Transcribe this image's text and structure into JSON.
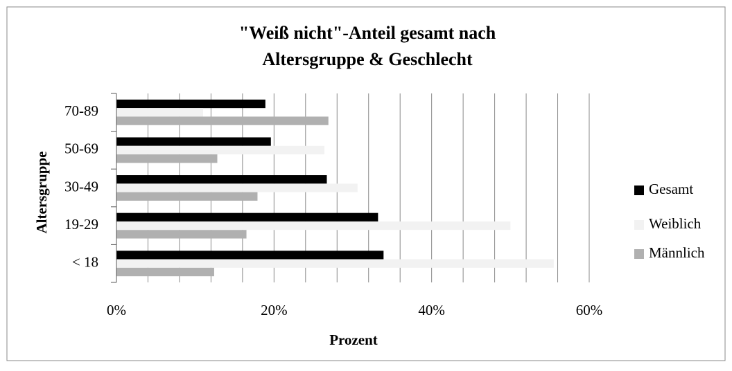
{
  "chart_data": {
    "type": "bar",
    "orientation": "horizontal",
    "title": [
      "\"Weiß nicht\"-Anteil gesamt nach",
      "Altersgruppe & Geschlecht"
    ],
    "x_label": "Prozent",
    "y_label": "Altersgruppe",
    "categories": [
      "70-89",
      "50-69",
      "30-49",
      "19-29",
      "< 18"
    ],
    "series": [
      {
        "name": "Gesamt",
        "color": "#000000",
        "values": [
          18.9,
          19.6,
          26.7,
          33.2,
          33.9
        ]
      },
      {
        "name": "Weiblich",
        "color": "#f2f2f2",
        "values": [
          11.0,
          26.4,
          30.6,
          50.0,
          55.5
        ]
      },
      {
        "name": "Männlich",
        "color": "#b0b0b0",
        "values": [
          26.9,
          12.8,
          17.9,
          16.5,
          12.4
        ]
      }
    ],
    "xlim": [
      0,
      60
    ],
    "xticks": [
      {
        "value": 0,
        "label": "0%"
      },
      {
        "value": 20,
        "label": "20%"
      },
      {
        "value": 40,
        "label": "40%"
      },
      {
        "value": 60,
        "label": "60%"
      }
    ],
    "x_minor_ticks": [
      4,
      8,
      12,
      16,
      24,
      28,
      32,
      36,
      44,
      48,
      52,
      56
    ],
    "grid": true,
    "legend": "right"
  }
}
